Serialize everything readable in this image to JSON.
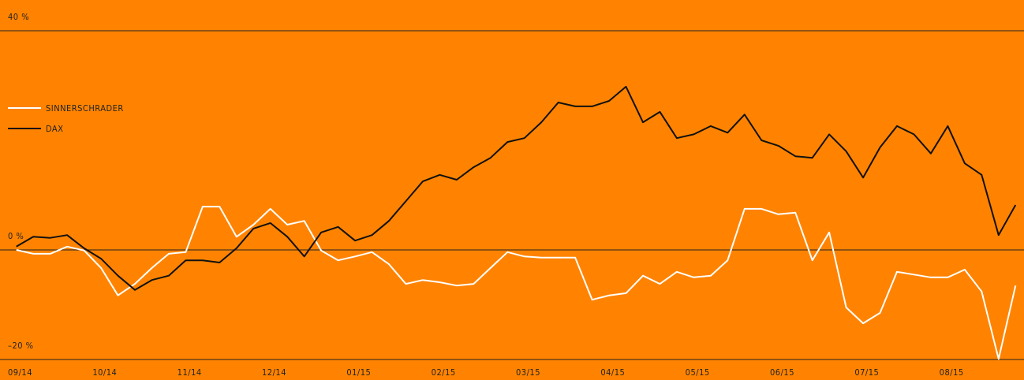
{
  "chart_data": {
    "type": "line",
    "x": [
      0.1,
      0.3,
      0.5,
      0.7,
      0.9,
      1.1,
      1.3,
      1.5,
      1.7,
      1.9,
      2.1,
      2.3,
      2.5,
      2.7,
      2.9,
      3.1,
      3.3,
      3.5,
      3.7,
      3.9,
      4.1,
      4.3,
      4.5,
      4.7,
      4.9,
      5.1,
      5.3,
      5.5,
      5.7,
      5.9,
      6.1,
      6.3,
      6.5,
      6.7,
      6.9,
      7.1,
      7.3,
      7.5,
      7.7,
      7.9,
      8.1,
      8.3,
      8.5,
      8.7,
      8.9,
      9.1,
      9.3,
      9.5,
      9.7,
      9.9,
      10.1,
      10.3,
      10.5,
      10.7,
      10.9,
      11.1,
      11.3,
      11.5,
      11.7,
      11.9
    ],
    "xlim": [
      0,
      12
    ],
    "xticks": [
      {
        "value": 0,
        "label": "09/14"
      },
      {
        "value": 1,
        "label": "10/14"
      },
      {
        "value": 2,
        "label": "11/14"
      },
      {
        "value": 3,
        "label": "12/14"
      },
      {
        "value": 4,
        "label": "01/15"
      },
      {
        "value": 5,
        "label": "02/15"
      },
      {
        "value": 6,
        "label": "03/15"
      },
      {
        "value": 7,
        "label": "04/15"
      },
      {
        "value": 8,
        "label": "05/15"
      },
      {
        "value": 9,
        "label": "06/15"
      },
      {
        "value": 10,
        "label": "07/15"
      },
      {
        "value": 11,
        "label": "08/15"
      }
    ],
    "ylim": [
      -20,
      40
    ],
    "yticks": [
      {
        "value": 40,
        "label": "40 %"
      },
      {
        "value": 0,
        "label": "0 %"
      },
      {
        "value": -20,
        "label": "–20 %"
      }
    ],
    "grid": true,
    "legend": "upper left",
    "series": [
      {
        "name": "SINNERSCHRADER",
        "color": "#ffffff",
        "values": [
          0,
          -0.7,
          -0.7,
          0.6,
          -0.1,
          -3.3,
          -8.3,
          -6.2,
          -3.3,
          -0.7,
          -0.4,
          7.9,
          7.9,
          2.4,
          4.6,
          7.5,
          4.6,
          5.3,
          -0.1,
          -1.9,
          -1.2,
          -0.4,
          -2.6,
          -6.2,
          -5.5,
          -5.9,
          -6.5,
          -6.2,
          -3.3,
          -0.4,
          -1.2,
          -1.4,
          -1.4,
          -1.4,
          -9.1,
          -8.3,
          -7.9,
          -4.7,
          -6.2,
          -4.0,
          -5.0,
          -4.7,
          -1.9,
          7.5,
          7.5,
          6.5,
          6.8,
          -1.9,
          3.2,
          -10.5,
          -13.4,
          -11.5,
          -4.0,
          -4.5,
          -5.0,
          -5.0,
          -3.6,
          -7.6,
          -19.9,
          -6.5
        ]
      },
      {
        "name": "DAX",
        "color": "#111111",
        "values": [
          0.6,
          2.4,
          2.2,
          2.7,
          0.3,
          -1.6,
          -4.7,
          -7.3,
          -5.5,
          -4.7,
          -1.9,
          -1.9,
          -2.3,
          0.3,
          3.9,
          4.9,
          2.4,
          -1.2,
          3.2,
          4.2,
          1.7,
          2.7,
          5.3,
          8.9,
          12.5,
          13.7,
          12.8,
          15.1,
          16.8,
          19.7,
          20.4,
          23.3,
          26.9,
          26.2,
          26.2,
          27.2,
          29.8,
          23.3,
          25.2,
          20.4,
          21.1,
          22.6,
          21.4,
          24.7,
          20.0,
          19.0,
          17.1,
          16.8,
          21.1,
          18.0,
          13.2,
          18.7,
          22.6,
          21.1,
          17.6,
          22.6,
          15.8,
          13.7,
          2.7,
          8.2
        ]
      }
    ]
  }
}
